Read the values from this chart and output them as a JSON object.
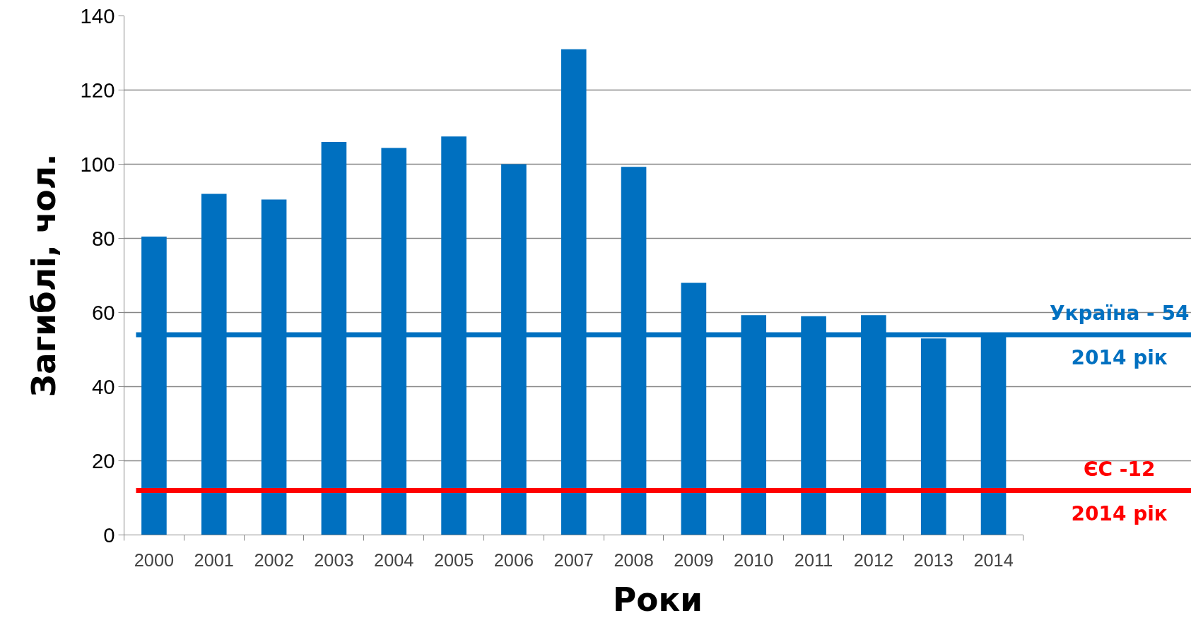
{
  "chart_data": {
    "type": "bar",
    "xlabel": "Роки",
    "ylabel": "Загиблі, чол.",
    "categories": [
      "2000",
      "2001",
      "2002",
      "2003",
      "2004",
      "2005",
      "2006",
      "2007",
      "2008",
      "2009",
      "2010",
      "2011",
      "2012",
      "2013",
      "2014"
    ],
    "series": [
      {
        "color": "#0070c0",
        "values": [
          80.5,
          92,
          90.5,
          106,
          104.4,
          107.5,
          100,
          131,
          99.3,
          68,
          59.3,
          59,
          59.3,
          53,
          53.7
        ]
      }
    ],
    "ylim": [
      0,
      140
    ],
    "yticks": [
      0,
      20,
      40,
      60,
      80,
      100,
      120,
      140
    ],
    "grid": "y",
    "ref_lines": [
      {
        "axis": "y",
        "value": 54,
        "label": "Україна - 54\n2014 рік",
        "color": "#0070c0"
      },
      {
        "axis": "y",
        "value": 12,
        "label": "ЄС -12\n2014 рік",
        "color": "#ff0000"
      }
    ]
  }
}
